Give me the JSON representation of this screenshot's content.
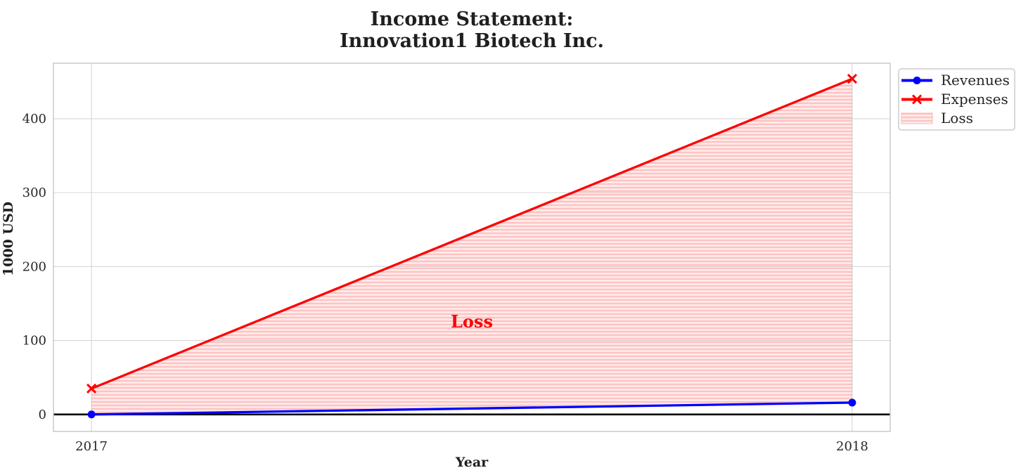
{
  "title": {
    "line1": "Income Statement:",
    "line2": "Innovation1 Biotech Inc."
  },
  "chart_data": {
    "type": "line",
    "x": [
      2017,
      2018
    ],
    "xticks": [
      "2017",
      "2018"
    ],
    "yticks": [
      "0",
      "100",
      "200",
      "300",
      "400"
    ],
    "ytick_values": [
      0,
      100,
      200,
      300,
      400
    ],
    "xlabel": "Year",
    "ylabel": "1000 USD",
    "xlim": [
      2016.95,
      2018.05
    ],
    "ylim": [
      -23,
      475
    ],
    "grid": true,
    "zero_line": {
      "y": 0,
      "color": "#000000"
    },
    "series": [
      {
        "name": "Revenues",
        "values": [
          0,
          16
        ],
        "color": "#0000ff",
        "marker": "circle"
      },
      {
        "name": "Expenses",
        "values": [
          35,
          454
        ],
        "color": "#ff0000",
        "marker": "x"
      }
    ],
    "loss_area": {
      "between": [
        "Revenues",
        "Expenses"
      ],
      "fill_color": "#ff0000",
      "fill_opacity": 0.08,
      "hatch": "horizontal",
      "annotation": {
        "text": "Loss",
        "x": 2017.5,
        "y": 126,
        "color": "#ff0000"
      }
    },
    "legend": {
      "position": "outside-upper-right",
      "entries": [
        {
          "label": "Revenues",
          "swatch": "line-circle",
          "color": "#0000ff"
        },
        {
          "label": "Expenses",
          "swatch": "line-x",
          "color": "#ff0000"
        },
        {
          "label": "Loss",
          "swatch": "hatched-patch",
          "color": "#ff0000"
        }
      ]
    }
  }
}
